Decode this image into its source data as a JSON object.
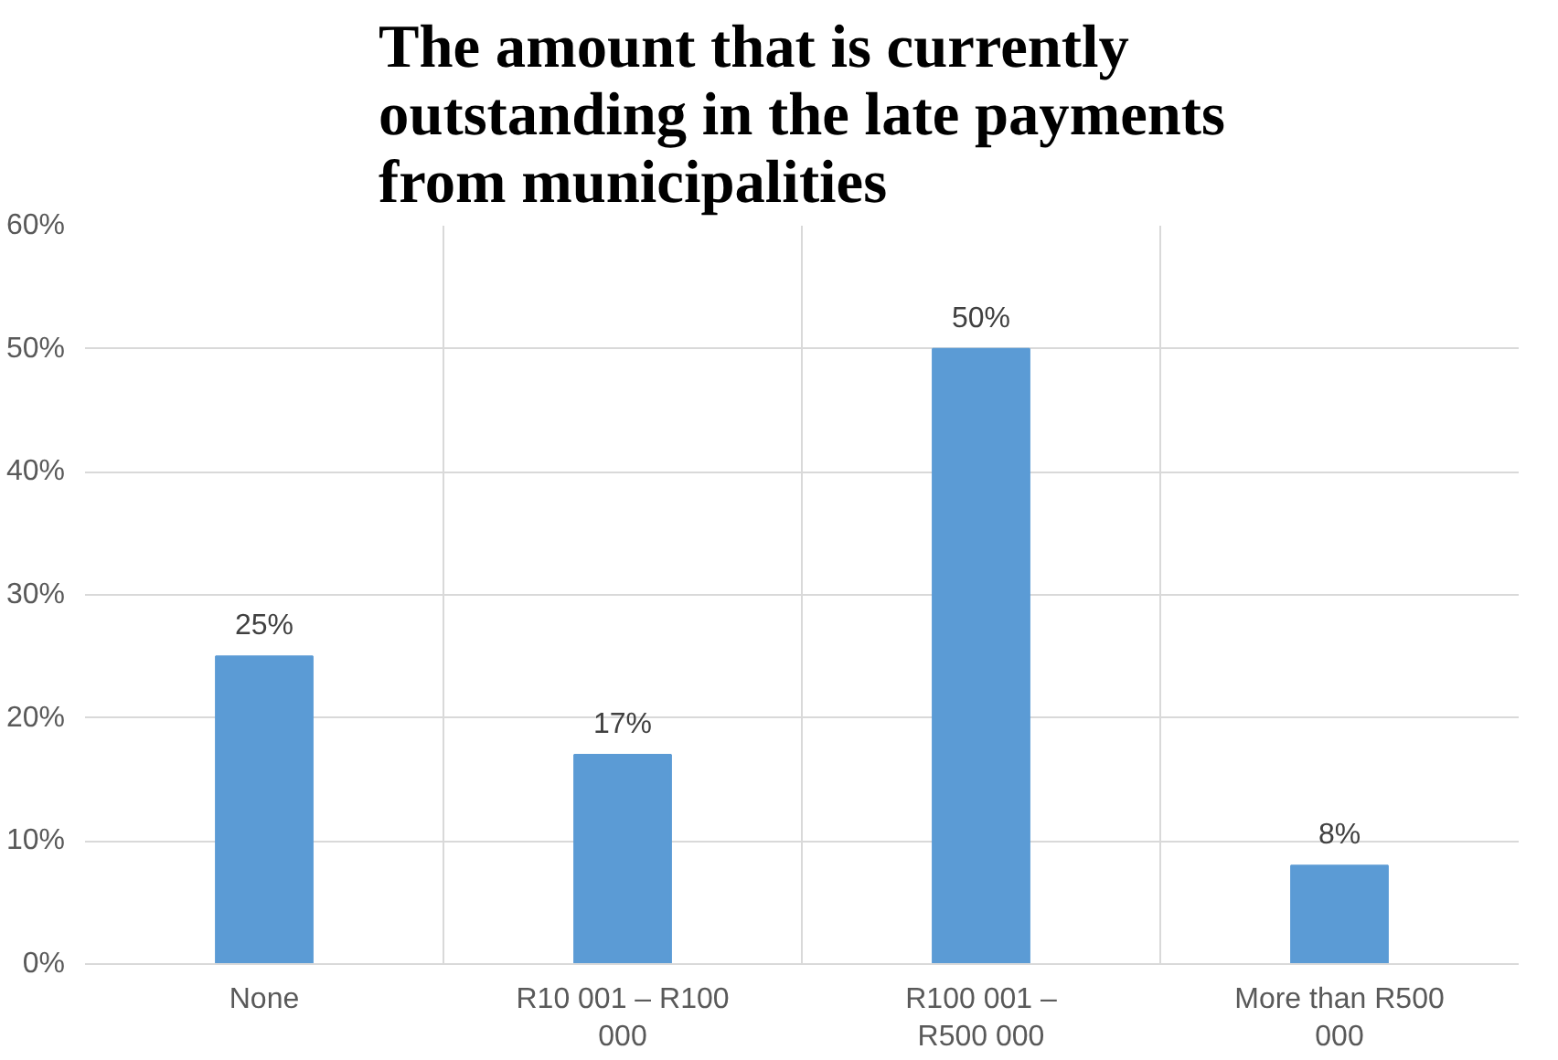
{
  "chart_data": {
    "type": "bar",
    "title": "The amount that is currently outstanding in the late payments from municipalities",
    "categories": [
      "None",
      "R10 001 – R100 000",
      "R100 001 – R500 000",
      "More than R500 000"
    ],
    "values": [
      25,
      17,
      50,
      8
    ],
    "color": "#5b9bd5",
    "value_labels": [
      "25%",
      "17%",
      "50%",
      "8%"
    ],
    "ylim": [
      0,
      60
    ],
    "yticks": [
      {
        "value": 0,
        "label": "0%"
      },
      {
        "value": 10,
        "label": "10%"
      },
      {
        "value": 20,
        "label": "20%"
      },
      {
        "value": 30,
        "label": "30%"
      },
      {
        "value": 40,
        "label": "40%"
      },
      {
        "value": 50,
        "label": "50%"
      },
      {
        "value": 60,
        "label": "60%"
      }
    ],
    "grid": true
  }
}
